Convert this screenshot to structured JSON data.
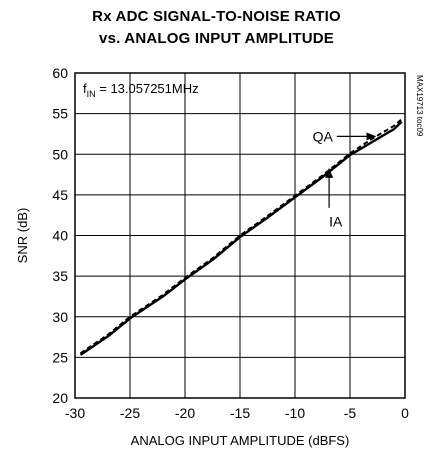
{
  "chart_data": {
    "type": "line",
    "title_line1": "Rx ADC SIGNAL-TO-NOISE RATIO",
    "title_line2": "vs. ANALOG INPUT AMPLITUDE",
    "xlabel": "ANALOG INPUT AMPLITUDE (dBFS)",
    "ylabel": "SNR (dB)",
    "xlim": [
      -30,
      0
    ],
    "ylim": [
      20,
      60
    ],
    "xticks": [
      -30,
      -25,
      -20,
      -15,
      -10,
      -5,
      0
    ],
    "yticks": [
      20,
      25,
      30,
      35,
      40,
      45,
      50,
      55,
      60
    ],
    "grid": true,
    "condition": {
      "prefix": "f",
      "subscript": "IN",
      "value": " = 13.057251MHz"
    },
    "code": "MAX19713 toc09",
    "series": [
      {
        "name": "IA",
        "style": "solid",
        "color": "#000000",
        "x": [
          -29.5,
          -27,
          -25,
          -22,
          -20,
          -17.5,
          -15,
          -12.5,
          -10,
          -7.5,
          -5,
          -3,
          -1,
          -0.3
        ],
        "y": [
          25.3,
          27.6,
          29.8,
          32.5,
          34.6,
          37.0,
          39.8,
          42.2,
          44.7,
          47.2,
          49.9,
          51.5,
          53.1,
          54.0
        ]
      },
      {
        "name": "QA",
        "style": "dashed",
        "color": "#000000",
        "x": [
          -29.5,
          -27,
          -25,
          -22,
          -20,
          -17.5,
          -15,
          -12.5,
          -10,
          -7.5,
          -5,
          -3,
          -1,
          -0.3
        ],
        "y": [
          25.5,
          27.8,
          30.0,
          32.7,
          34.8,
          37.2,
          40.0,
          42.4,
          44.9,
          47.4,
          50.1,
          51.9,
          53.5,
          54.3
        ]
      }
    ],
    "annotations": [
      {
        "label": "QA",
        "text_x": -8.4,
        "text_y": 52.2,
        "arrow_from": [
          -6.2,
          52.2
        ],
        "arrow_to": [
          -2.7,
          52.2
        ]
      },
      {
        "label": "IA",
        "text_x": -6.9,
        "text_y": 41.7,
        "arrow_from": [
          -6.9,
          43.4
        ],
        "arrow_to": [
          -6.9,
          48.2
        ]
      }
    ]
  }
}
